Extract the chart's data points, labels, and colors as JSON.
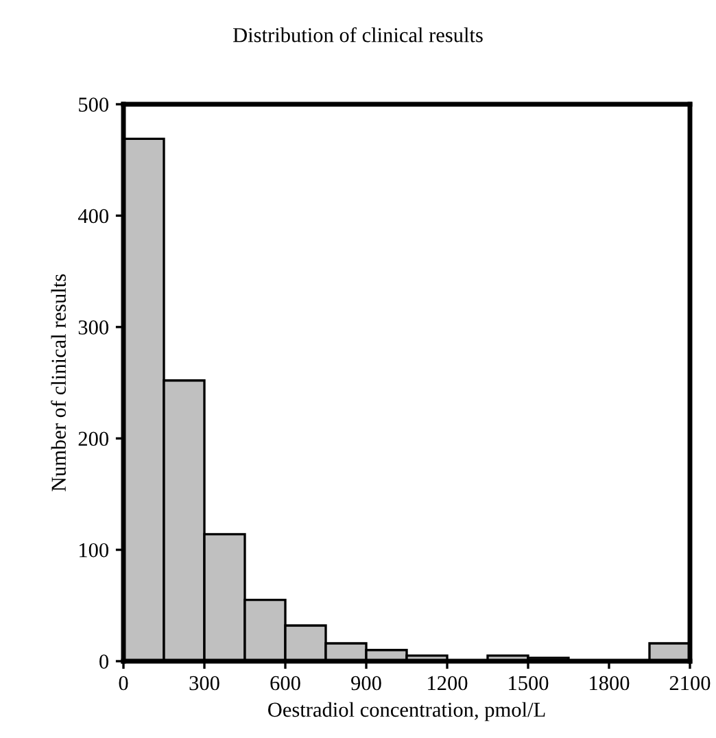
{
  "chart_data": {
    "type": "histogram",
    "title": "Distribution of clinical results",
    "xlabel": "Oestradiol concentration, pmol/L",
    "ylabel": "Number of clinical results",
    "bins": [
      0,
      150,
      300,
      450,
      600,
      750,
      900,
      1050,
      1200,
      1350,
      1500,
      1650,
      1800,
      1950,
      2100
    ],
    "values": [
      469,
      252,
      114,
      55,
      32,
      16,
      10,
      5,
      0,
      5,
      3,
      0,
      0,
      16
    ],
    "color": "#c0c0c0",
    "xlim": [
      0,
      2100
    ],
    "xticks": [
      0,
      300,
      600,
      900,
      1200,
      1500,
      1800,
      2100
    ],
    "ylim": [
      0,
      500
    ],
    "yticks": [
      0,
      100,
      200,
      300,
      400,
      500
    ],
    "grid": false,
    "legend": false
  }
}
